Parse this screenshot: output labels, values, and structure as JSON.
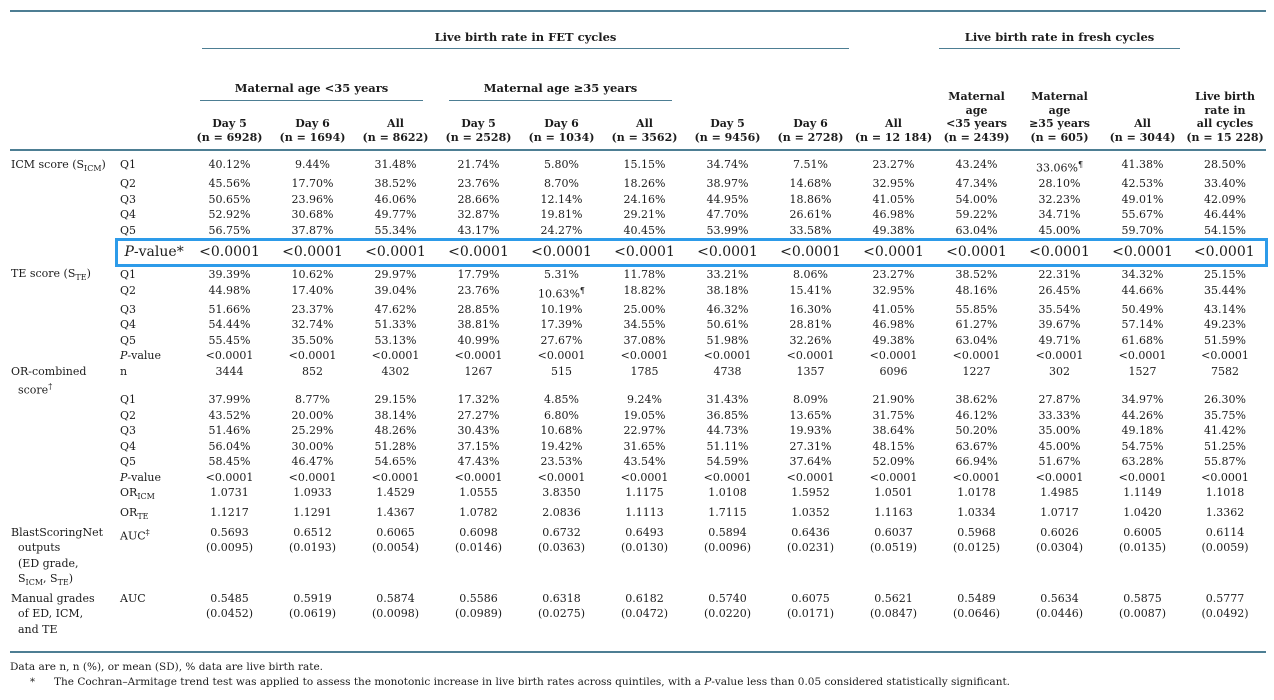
{
  "colors": {
    "rule": "#4d7e93",
    "highlight_box": "#2d9be9"
  },
  "table": {
    "group_headers": {
      "fet": "Live birth rate in FET cycles",
      "fresh": "Live birth rate in fresh cycles",
      "age_lt35": "Maternal age <35 years",
      "age_ge35": "Maternal age ≥35 years"
    },
    "columns": [
      "Day 5\n(n = 6928)",
      "Day 6\n(n = 1694)",
      "All\n(n = 8622)",
      "Day 5\n(n = 2528)",
      "Day 6\n(n = 1034)",
      "All\n(n = 3562)",
      "Day 5\n(n = 9456)",
      "Day 6\n(n = 2728)",
      "All\n(n = 12 184)",
      "Maternal\nage\n<35 years\n(n = 2439)",
      "Maternal\nage\n≥35 years\n(n = 605)",
      "All\n(n = 3044)",
      "Live birth\nrate in\nall cycles\n(n = 15 228)"
    ],
    "sections": [
      {
        "label": "ICM score (S~ICM~)",
        "rows": [
          {
            "label": "Q1",
            "values": [
              "40.12%",
              "9.44%",
              "31.48%",
              "21.74%",
              "5.80%",
              "15.15%",
              "34.74%",
              "7.51%",
              "23.27%",
              "43.24%",
              "33.06%^¶^",
              "41.38%",
              "28.50%"
            ]
          },
          {
            "label": "Q2",
            "values": [
              "45.56%",
              "17.70%",
              "38.52%",
              "23.76%",
              "8.70%",
              "18.26%",
              "38.97%",
              "14.68%",
              "32.95%",
              "47.34%",
              "28.10%",
              "42.53%",
              "33.40%"
            ]
          },
          {
            "label": "Q3",
            "values": [
              "50.65%",
              "23.96%",
              "46.06%",
              "28.66%",
              "12.14%",
              "24.16%",
              "44.95%",
              "18.86%",
              "41.05%",
              "54.00%",
              "32.23%",
              "49.01%",
              "42.09%"
            ]
          },
          {
            "label": "Q4",
            "values": [
              "52.92%",
              "30.68%",
              "49.77%",
              "32.87%",
              "19.81%",
              "29.21%",
              "47.70%",
              "26.61%",
              "46.98%",
              "59.22%",
              "34.71%",
              "55.67%",
              "46.44%"
            ]
          },
          {
            "label": "Q5",
            "values": [
              "56.75%",
              "37.87%",
              "55.34%",
              "43.17%",
              "24.27%",
              "40.45%",
              "53.99%",
              "33.58%",
              "49.38%",
              "63.04%",
              "45.00%",
              "59.70%",
              "54.15%"
            ]
          },
          {
            "label": "{i}P{/i}-value*",
            "highlight": true,
            "values": [
              "<0.0001",
              "<0.0001",
              "<0.0001",
              "<0.0001",
              "<0.0001",
              "<0.0001",
              "<0.0001",
              "<0.0001",
              "<0.0001",
              "<0.0001",
              "<0.0001",
              "<0.0001",
              "<0.0001"
            ]
          }
        ]
      },
      {
        "label": "TE score (S~TE~)",
        "rows": [
          {
            "label": "Q1",
            "values": [
              "39.39%",
              "10.62%",
              "29.97%",
              "17.79%",
              "5.31%",
              "11.78%",
              "33.21%",
              "8.06%",
              "23.27%",
              "38.52%",
              "22.31%",
              "34.32%",
              "25.15%"
            ]
          },
          {
            "label": "Q2",
            "values": [
              "44.98%",
              "17.40%",
              "39.04%",
              "23.76%",
              "10.63%^¶^",
              "18.82%",
              "38.18%",
              "15.41%",
              "32.95%",
              "48.16%",
              "26.45%",
              "44.66%",
              "35.44%"
            ]
          },
          {
            "label": "Q3",
            "values": [
              "51.66%",
              "23.37%",
              "47.62%",
              "28.85%",
              "10.19%",
              "25.00%",
              "46.32%",
              "16.30%",
              "41.05%",
              "55.85%",
              "35.54%",
              "50.49%",
              "43.14%"
            ]
          },
          {
            "label": "Q4",
            "values": [
              "54.44%",
              "32.74%",
              "51.33%",
              "38.81%",
              "17.39%",
              "34.55%",
              "50.61%",
              "28.81%",
              "46.98%",
              "61.27%",
              "39.67%",
              "57.14%",
              "49.23%"
            ]
          },
          {
            "label": "Q5",
            "values": [
              "55.45%",
              "35.50%",
              "53.13%",
              "40.99%",
              "27.67%",
              "37.08%",
              "51.98%",
              "32.26%",
              "49.38%",
              "63.04%",
              "49.71%",
              "61.68%",
              "51.59%"
            ]
          },
          {
            "label": "{i}P{/i}-value",
            "values": [
              "<0.0001",
              "<0.0001",
              "<0.0001",
              "<0.0001",
              "<0.0001",
              "<0.0001",
              "<0.0001",
              "<0.0001",
              "<0.0001",
              "<0.0001",
              "<0.0001",
              "<0.0001",
              "<0.0001"
            ]
          }
        ]
      },
      {
        "label": "OR-combined\n  score^†^",
        "rows": [
          {
            "label": "n",
            "values": [
              "3444",
              "852",
              "4302",
              "1267",
              "515",
              "1785",
              "4738",
              "1357",
              "6096",
              "1227",
              "302",
              "1527",
              "7582"
            ]
          },
          {
            "spacer": true
          },
          {
            "label": "Q1",
            "values": [
              "37.99%",
              "8.77%",
              "29.15%",
              "17.32%",
              "4.85%",
              "9.24%",
              "31.43%",
              "8.09%",
              "21.90%",
              "38.62%",
              "27.87%",
              "34.97%",
              "26.30%"
            ]
          },
          {
            "label": "Q2",
            "values": [
              "43.52%",
              "20.00%",
              "38.14%",
              "27.27%",
              "6.80%",
              "19.05%",
              "36.85%",
              "13.65%",
              "31.75%",
              "46.12%",
              "33.33%",
              "44.26%",
              "35.75%"
            ]
          },
          {
            "label": "Q3",
            "values": [
              "51.46%",
              "25.29%",
              "48.26%",
              "30.43%",
              "10.68%",
              "22.97%",
              "44.73%",
              "19.93%",
              "38.64%",
              "50.20%",
              "35.00%",
              "49.18%",
              "41.42%"
            ]
          },
          {
            "label": "Q4",
            "values": [
              "56.04%",
              "30.00%",
              "51.28%",
              "37.15%",
              "19.42%",
              "31.65%",
              "51.11%",
              "27.31%",
              "48.15%",
              "63.67%",
              "45.00%",
              "54.75%",
              "51.25%"
            ]
          },
          {
            "label": "Q5",
            "values": [
              "58.45%",
              "46.47%",
              "54.65%",
              "47.43%",
              "23.53%",
              "43.54%",
              "54.59%",
              "37.64%",
              "52.09%",
              "66.94%",
              "51.67%",
              "63.28%",
              "55.87%"
            ]
          },
          {
            "label": "{i}P{/i}-value",
            "values": [
              "<0.0001",
              "<0.0001",
              "<0.0001",
              "<0.0001",
              "<0.0001",
              "<0.0001",
              "<0.0001",
              "<0.0001",
              "<0.0001",
              "<0.0001",
              "<0.0001",
              "<0.0001",
              "<0.0001"
            ]
          },
          {
            "label": "OR~ICM~",
            "values": [
              "1.0731",
              "1.0933",
              "1.4529",
              "1.0555",
              "3.8350",
              "1.1175",
              "1.0108",
              "1.5952",
              "1.0501",
              "1.0178",
              "1.4985",
              "1.1149",
              "1.1018"
            ]
          },
          {
            "label": "OR~TE~",
            "values": [
              "1.1217",
              "1.1291",
              "1.4367",
              "1.0782",
              "2.0836",
              "1.1113",
              "1.7115",
              "1.0352",
              "1.1163",
              "1.0334",
              "1.0717",
              "1.0420",
              "1.3362"
            ]
          }
        ]
      },
      {
        "label": "BlastScoringNet\n  outputs\n  (ED grade,\n  S~ICM~, S~TE~)",
        "rows": [
          {
            "label": "AUC^‡^",
            "values": [
              "0.5693\n(0.0095)",
              "0.6512\n(0.0193)",
              "0.6065\n(0.0054)",
              "0.6098\n(0.0146)",
              "0.6732\n(0.0363)",
              "0.6493\n(0.0130)",
              "0.5894\n(0.0096)",
              "0.6436\n(0.0231)",
              "0.6037\n(0.0519)",
              "0.5968\n(0.0125)",
              "0.6026\n(0.0304)",
              "0.6005\n(0.0135)",
              "0.6114\n(0.0059)"
            ]
          }
        ]
      },
      {
        "label": "Manual grades\n  of ED, ICM,\n  and TE",
        "rows": [
          {
            "label": "AUC",
            "values": [
              "0.5485\n(0.0452)",
              "0.5919\n(0.0619)",
              "0.5874\n(0.0098)",
              "0.5586\n(0.0989)",
              "0.6318\n(0.0275)",
              "0.6182\n(0.0472)",
              "0.5740\n(0.0220)",
              "0.6075\n(0.0171)",
              "0.5621\n(0.0847)",
              "0.5489\n(0.0646)",
              "0.5634\n(0.0446)",
              "0.5875\n(0.0087)",
              "0.5777\n(0.0492)"
            ]
          }
        ]
      }
    ]
  },
  "footnotes": {
    "line1": "Data are n, n (%), or mean (SD), % data are live birth rate.",
    "marker": "*",
    "line2": "The Cochran–Armitage trend test was applied to assess the monotonic increase in live birth rates across quintiles, with a {i}P{/i}-value less than 0.05 considered statistically significant."
  }
}
